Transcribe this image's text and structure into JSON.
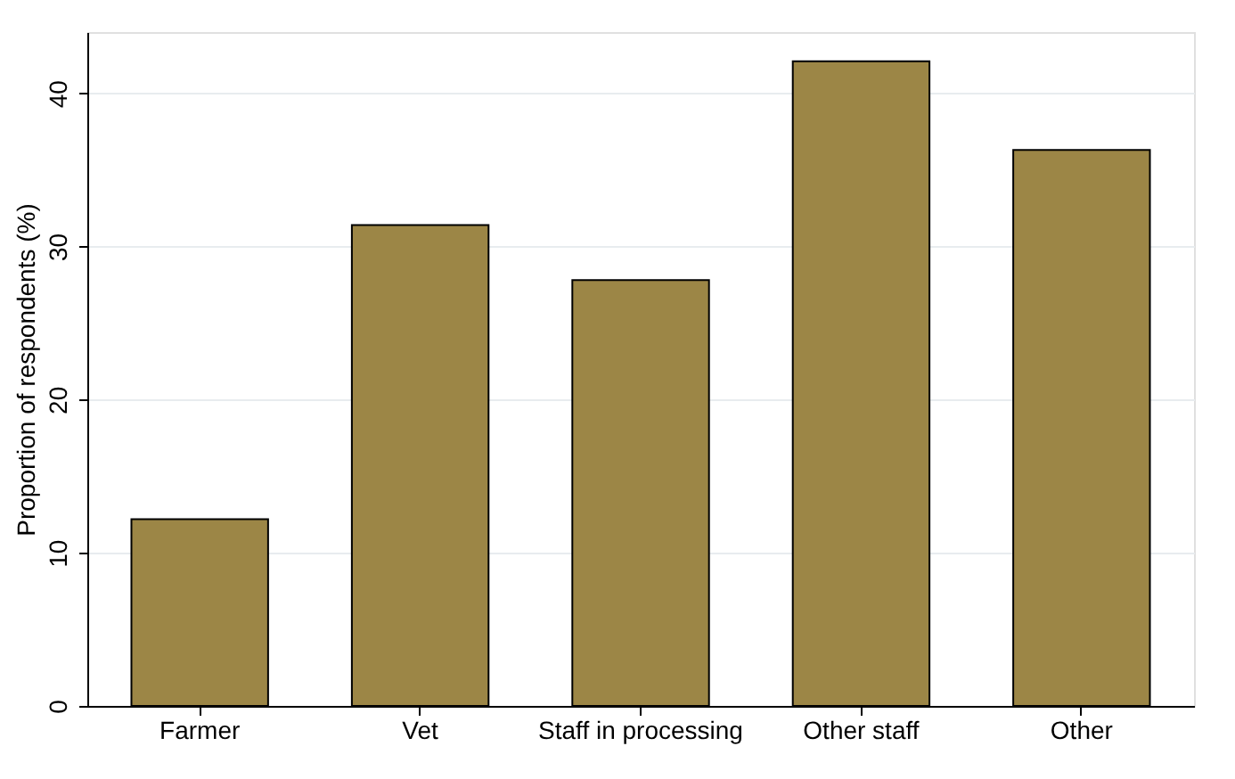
{
  "chart_data": {
    "type": "bar",
    "ylabel": "Proportion of respondents (%)",
    "categories": [
      "Farmer",
      "Vet",
      "Staff in processing",
      "Other staff",
      "Other"
    ],
    "values": [
      12.2,
      31.4,
      27.8,
      42.1,
      36.3
    ],
    "color": "#9c8646",
    "ylim": [
      0,
      44
    ],
    "yticks": [
      0,
      10,
      20,
      30,
      40
    ],
    "grid": "y"
  }
}
